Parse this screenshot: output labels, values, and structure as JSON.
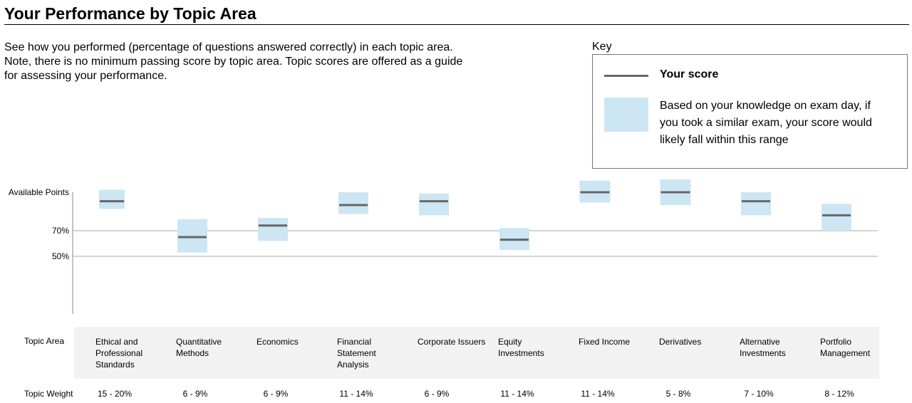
{
  "title": "Your Performance by Topic Area",
  "intro": "See how you performed (percentage of questions answered correctly) in each topic area. Note, there is no minimum passing score by topic area. Topic scores are offered as a guide for assessing your performance.",
  "key": {
    "heading": "Key",
    "score_label": "Your score",
    "range_label": "Based on your knowledge on exam day, if you took a similar exam, your score would likely fall within this range",
    "score_color": "#666666",
    "range_color": "#cde6f4"
  },
  "table": {
    "topic_area_label": "Topic Area",
    "topic_weight_label": "Topic Weight"
  },
  "chart_data": {
    "type": "range",
    "ylim": [
      20,
      100
    ],
    "y_ticks": [
      {
        "value": 100,
        "label": "Available Points"
      },
      {
        "value": 70,
        "label": "70%"
      },
      {
        "value": 50,
        "label": "50%"
      }
    ],
    "gridlines": [
      70,
      50
    ],
    "categories": [
      {
        "name": "Ethical and Professional Standards",
        "weight": "15 - 20%",
        "score": 93,
        "low": 87,
        "high": 102
      },
      {
        "name": "Quantitative Methods",
        "weight": "6 - 9%",
        "score": 65,
        "low": 53,
        "high": 79
      },
      {
        "name": "Economics",
        "weight": "6 - 9%",
        "score": 74,
        "low": 62,
        "high": 80
      },
      {
        "name": "Financial Statement Analysis",
        "weight": "11 - 14%",
        "score": 90,
        "low": 83,
        "high": 100
      },
      {
        "name": "Corporate Issuers",
        "weight": "6 - 9%",
        "score": 93,
        "low": 82,
        "high": 99
      },
      {
        "name": "Equity Investments",
        "weight": "11 - 14%",
        "score": 63,
        "low": 55,
        "high": 72
      },
      {
        "name": "Fixed Income",
        "weight": "11 - 14%",
        "score": 100,
        "low": 92,
        "high": 109
      },
      {
        "name": "Derivatives",
        "weight": "5 - 8%",
        "score": 100,
        "low": 90,
        "high": 110
      },
      {
        "name": "Alternative Investments",
        "weight": "7 - 10%",
        "score": 93,
        "low": 82,
        "high": 100
      },
      {
        "name": "Portfolio Management",
        "weight": "8 - 12%",
        "score": 82,
        "low": 70,
        "high": 91
      }
    ]
  }
}
